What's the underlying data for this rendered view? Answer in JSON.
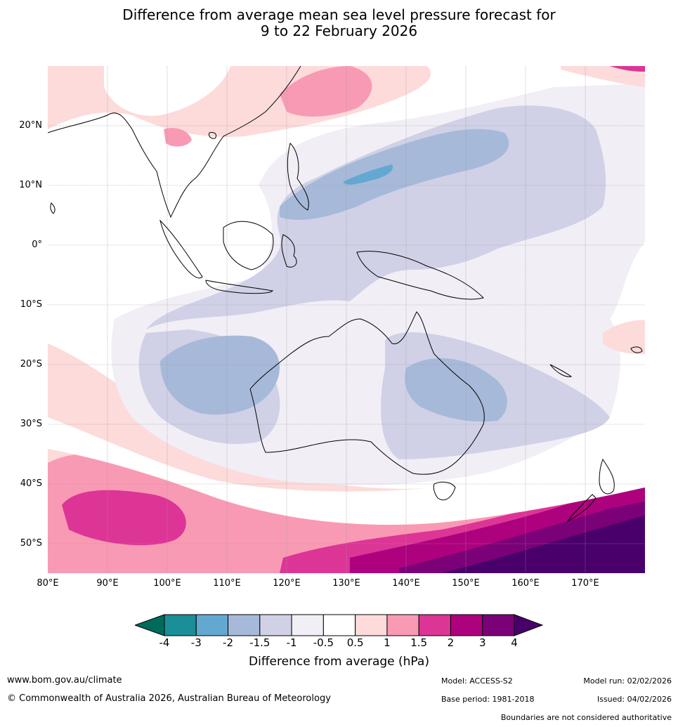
{
  "title": {
    "line1": "Difference from average mean sea level pressure forecast for",
    "line2": "9 to 22 February 2026"
  },
  "map": {
    "lat_labels": [
      "20°N",
      "10°N",
      "0°",
      "10°S",
      "20°S",
      "30°S",
      "40°S",
      "50°S"
    ],
    "lon_labels": [
      "80°E",
      "90°E",
      "100°E",
      "110°E",
      "120°E",
      "130°E",
      "140°E",
      "150°E",
      "160°E",
      "170°E"
    ],
    "lon_range": [
      80,
      180
    ],
    "lat_range": [
      -55,
      30
    ]
  },
  "colorbar": {
    "title": "Difference from average (hPa)",
    "tick_labels": [
      "-4",
      "-3",
      "-2",
      "-1.5",
      "-1",
      "-0.5",
      "0.5",
      "1",
      "1.5",
      "2",
      "3",
      "4"
    ],
    "colors": [
      "#1a8f97",
      "#62a8d1",
      "#a6b9d9",
      "#d0d1e6",
      "#f1eef6",
      "#ffffff",
      "#fddbdb",
      "#f99ab4",
      "#dd3596",
      "#ae017e",
      "#7a0177"
    ],
    "under_color": "#006b5a",
    "over_color": "#49006a"
  },
  "footer": {
    "url": "www.bom.gov.au/climate",
    "copyright": "© Commonwealth of Australia 2026, Australian Bureau of Meteorology",
    "model": "Model: ACCESS-S2",
    "base_period": "Base period: 1981-2018",
    "model_run": "Model run: 02/02/2026",
    "issued": "Issued: 04/02/2026",
    "boundaries": "Boundaries are not considered authoritative"
  }
}
